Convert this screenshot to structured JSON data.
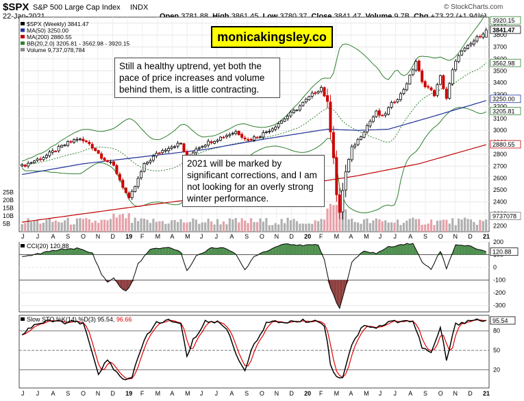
{
  "header": {
    "symbol": "$SPX",
    "name": "S&P 500 Large Cap Index",
    "exchange": "INDX",
    "date": "22-Jan-2021",
    "open_label": "Open",
    "open": "3781.88",
    "high_label": "High",
    "high": "3861.45",
    "low_label": "Low",
    "low": "3780.37",
    "close_label": "Close",
    "close": "3841.47",
    "volume_label": "Volume",
    "volume": "9.7B",
    "chg_label": "Chg",
    "chg": "+73.22 (+1.94%)",
    "copyright": "© StockCharts.com"
  },
  "watermark": "monicakingsley.co",
  "annotations": [
    "Still a healthy uptrend, yet both the pace of price increases and volume behind them, is a little contracting.",
    "2021 will be marked by significant corrections, and I am not looking for an overly strong winter performance."
  ],
  "colors": {
    "up": "#000000",
    "down": "#cc0000",
    "ma50": "#1f2f9a",
    "ma200": "#c00000",
    "bb": "#2f7f2f",
    "vol_up": "#b0b0b0",
    "vol_down": "#e8a0a8",
    "cci_fill": "#4f8f4f",
    "cci_neg_fill": "#8f3f3f",
    "sto_k": "#000000",
    "sto_d": "#e00000"
  },
  "chart_data": [
    {
      "type": "candlestick",
      "title": "$SPX (Weekly) 3841.47",
      "legend": [
        {
          "label": "$SPX (Weekly) 3841.47"
        },
        {
          "label": "MA(50) 3250.00"
        },
        {
          "label": "MA(200) 2880.55"
        },
        {
          "label": "BB(20,2.0) 3205.81 - 3562.98 - 3920.15"
        },
        {
          "label": "Volume 9,737,078,784"
        }
      ],
      "ylim": [
        2150,
        3950
      ],
      "y_ticks": [
        2200,
        2300,
        2400,
        2500,
        2600,
        2700,
        2800,
        2900,
        3000,
        3100,
        3200,
        3300,
        3400,
        3500,
        3600,
        3700,
        3800,
        3900
      ],
      "vol_ticks": [
        {
          "label": "5B",
          "v": 5
        },
        {
          "label": "10B",
          "v": 10
        },
        {
          "label": "15B",
          "v": 15
        },
        {
          "label": "20B",
          "v": 20
        },
        {
          "label": "25B",
          "v": 25
        }
      ],
      "last_labels": [
        {
          "text": "3920.15",
          "v": 3920.15
        },
        {
          "text": "3841.47",
          "v": 3841.47
        },
        {
          "text": "3562.98",
          "v": 3562.98
        },
        {
          "text": "3250.00",
          "v": 3250.0
        },
        {
          "text": "3205.81",
          "v": 3205.81
        },
        {
          "text": "2880.55",
          "v": 2880.55
        },
        {
          "text": "9737078",
          "v": 9737078
        }
      ],
      "x_labels": [
        "J",
        "J",
        "A",
        "S",
        "O",
        "N",
        "D",
        "19",
        "F",
        "M",
        "A",
        "M",
        "J",
        "J",
        "A",
        "S",
        "O",
        "N",
        "D",
        "20",
        "F",
        "M",
        "A",
        "M",
        "J",
        "J",
        "A",
        "S",
        "O",
        "N",
        "D",
        "21"
      ],
      "price_anchors": [
        [
          0,
          2700
        ],
        [
          8,
          2790
        ],
        [
          14,
          2880
        ],
        [
          18,
          2930
        ],
        [
          22,
          2890
        ],
        [
          26,
          2780
        ],
        [
          30,
          2700
        ],
        [
          33,
          2530
        ],
        [
          35,
          2420
        ],
        [
          37,
          2530
        ],
        [
          40,
          2710
        ],
        [
          44,
          2800
        ],
        [
          48,
          2860
        ],
        [
          52,
          2890
        ],
        [
          54,
          2760
        ],
        [
          57,
          2850
        ],
        [
          61,
          2900
        ],
        [
          65,
          2940
        ],
        [
          70,
          2990
        ],
        [
          74,
          2920
        ],
        [
          78,
          2960
        ],
        [
          82,
          3020
        ],
        [
          86,
          3100
        ],
        [
          90,
          3180
        ],
        [
          95,
          3300
        ],
        [
          98,
          3360
        ],
        [
          100,
          3230
        ],
        [
          101,
          3000
        ],
        [
          102,
          2780
        ],
        [
          103,
          2460
        ],
        [
          104,
          2300
        ],
        [
          105,
          2500
        ],
        [
          106,
          2650
        ],
        [
          108,
          2850
        ],
        [
          110,
          2920
        ],
        [
          113,
          3040
        ],
        [
          116,
          3150
        ],
        [
          118,
          3110
        ],
        [
          121,
          3220
        ],
        [
          124,
          3300
        ],
        [
          127,
          3450
        ],
        [
          129,
          3580
        ],
        [
          131,
          3400
        ],
        [
          133,
          3360
        ],
        [
          135,
          3300
        ],
        [
          137,
          3450
        ],
        [
          139,
          3270
        ],
        [
          141,
          3500
        ],
        [
          143,
          3640
        ],
        [
          146,
          3700
        ],
        [
          148,
          3750
        ],
        [
          150,
          3800
        ],
        [
          152,
          3841
        ]
      ],
      "ma50_anchors": [
        [
          0,
          2630
        ],
        [
          20,
          2720
        ],
        [
          40,
          2780
        ],
        [
          60,
          2840
        ],
        [
          80,
          2930
        ],
        [
          100,
          3010
        ],
        [
          110,
          3000
        ],
        [
          120,
          3010
        ],
        [
          135,
          3120
        ],
        [
          152,
          3250
        ]
      ],
      "ma200_anchors": [
        [
          0,
          2230
        ],
        [
          40,
          2370
        ],
        [
          80,
          2500
        ],
        [
          110,
          2620
        ],
        [
          130,
          2720
        ],
        [
          152,
          2880
        ]
      ],
      "cci_ticks": [
        -300,
        -200,
        -100,
        0,
        100,
        200
      ],
      "cci_last": "120.88",
      "cci_title": "CCI(20) 120.88",
      "cci_anchors": [
        [
          0,
          80
        ],
        [
          6,
          110
        ],
        [
          12,
          140
        ],
        [
          18,
          150
        ],
        [
          23,
          110
        ],
        [
          26,
          -50
        ],
        [
          28,
          -120
        ],
        [
          30,
          -80
        ],
        [
          32,
          -150
        ],
        [
          34,
          -190
        ],
        [
          36,
          -120
        ],
        [
          38,
          30
        ],
        [
          42,
          140
        ],
        [
          48,
          160
        ],
        [
          52,
          120
        ],
        [
          54,
          -30
        ],
        [
          57,
          90
        ],
        [
          62,
          150
        ],
        [
          66,
          160
        ],
        [
          70,
          100
        ],
        [
          73,
          -20
        ],
        [
          76,
          90
        ],
        [
          80,
          130
        ],
        [
          86,
          190
        ],
        [
          92,
          170
        ],
        [
          97,
          180
        ],
        [
          99,
          60
        ],
        [
          101,
          -160
        ],
        [
          103,
          -280
        ],
        [
          104,
          -320
        ],
        [
          106,
          -150
        ],
        [
          108,
          40
        ],
        [
          112,
          130
        ],
        [
          116,
          110
        ],
        [
          120,
          160
        ],
        [
          124,
          180
        ],
        [
          128,
          190
        ],
        [
          131,
          40
        ],
        [
          134,
          -10
        ],
        [
          137,
          130
        ],
        [
          139,
          -10
        ],
        [
          142,
          180
        ],
        [
          146,
          170
        ],
        [
          150,
          140
        ],
        [
          152,
          120
        ]
      ],
      "sto_ticks": [
        20,
        50,
        80
      ],
      "sto_title": "Slow STO %K(14) %D(3) 95.54, 96.66",
      "sto_k_label": "95.54",
      "sto_d_label": "96.66",
      "sto_k_anchors": [
        [
          0,
          75
        ],
        [
          4,
          90
        ],
        [
          10,
          95
        ],
        [
          16,
          93
        ],
        [
          20,
          92
        ],
        [
          22,
          60
        ],
        [
          25,
          15
        ],
        [
          28,
          35
        ],
        [
          30,
          20
        ],
        [
          33,
          5
        ],
        [
          36,
          10
        ],
        [
          40,
          65
        ],
        [
          44,
          93
        ],
        [
          48,
          96
        ],
        [
          52,
          90
        ],
        [
          54,
          40
        ],
        [
          56,
          65
        ],
        [
          60,
          95
        ],
        [
          64,
          93
        ],
        [
          67,
          85
        ],
        [
          70,
          45
        ],
        [
          73,
          20
        ],
        [
          76,
          60
        ],
        [
          80,
          92
        ],
        [
          86,
          94
        ],
        [
          92,
          95
        ],
        [
          96,
          96
        ],
        [
          99,
          90
        ],
        [
          101,
          30
        ],
        [
          103,
          8
        ],
        [
          105,
          10
        ],
        [
          108,
          60
        ],
        [
          112,
          90
        ],
        [
          116,
          85
        ],
        [
          120,
          93
        ],
        [
          124,
          96
        ],
        [
          128,
          95
        ],
        [
          131,
          55
        ],
        [
          134,
          45
        ],
        [
          137,
          85
        ],
        [
          139,
          35
        ],
        [
          142,
          90
        ],
        [
          146,
          96
        ],
        [
          150,
          97
        ],
        [
          152,
          95
        ]
      ]
    }
  ]
}
